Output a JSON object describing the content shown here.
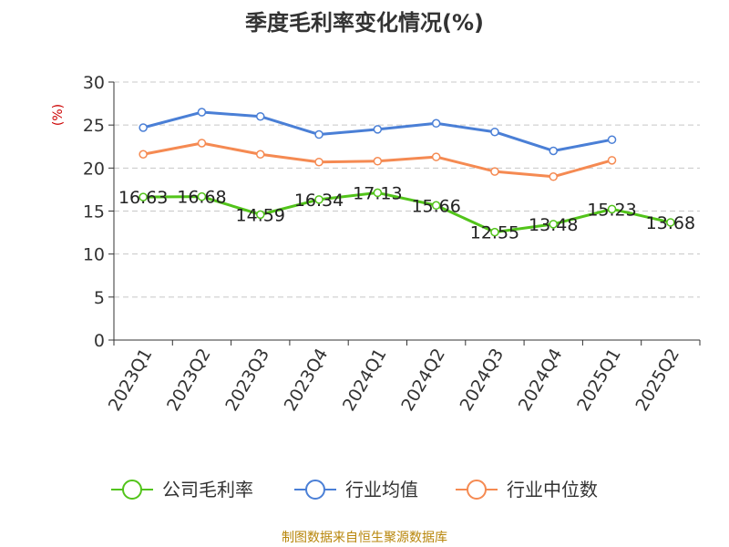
{
  "chart_data": {
    "type": "line",
    "title": "季度毛利率变化情况(%)",
    "ylabel": "(%)",
    "xlabel": "",
    "categories": [
      "2023Q1",
      "2023Q2",
      "2023Q3",
      "2023Q4",
      "2024Q1",
      "2024Q2",
      "2024Q3",
      "2024Q4",
      "2025Q1",
      "2025Q2"
    ],
    "ylim": [
      0,
      30
    ],
    "yticks": [
      0,
      5,
      10,
      15,
      20,
      25,
      30
    ],
    "grid": true,
    "legend_position": "bottom",
    "series": [
      {
        "name": "公司毛利率",
        "color": "#52c41a",
        "values": [
          16.63,
          16.68,
          14.59,
          16.34,
          17.13,
          15.66,
          12.55,
          13.48,
          15.23,
          13.68
        ],
        "labels": [
          "16.63",
          "16.68",
          "14.59",
          "16.34",
          "17.13",
          "15.66",
          "12.55",
          "13.48",
          "15.23",
          "13.68"
        ]
      },
      {
        "name": "行业均值",
        "color": "#4a7fd6",
        "values": [
          24.7,
          26.5,
          26.0,
          23.9,
          24.5,
          25.2,
          24.2,
          22.0,
          23.3,
          null
        ]
      },
      {
        "name": "行业中位数",
        "color": "#f58a52",
        "values": [
          21.6,
          22.9,
          21.6,
          20.7,
          20.8,
          21.3,
          19.6,
          19.0,
          20.9,
          null
        ]
      }
    ],
    "source": "制图数据来自恒生聚源数据库"
  }
}
